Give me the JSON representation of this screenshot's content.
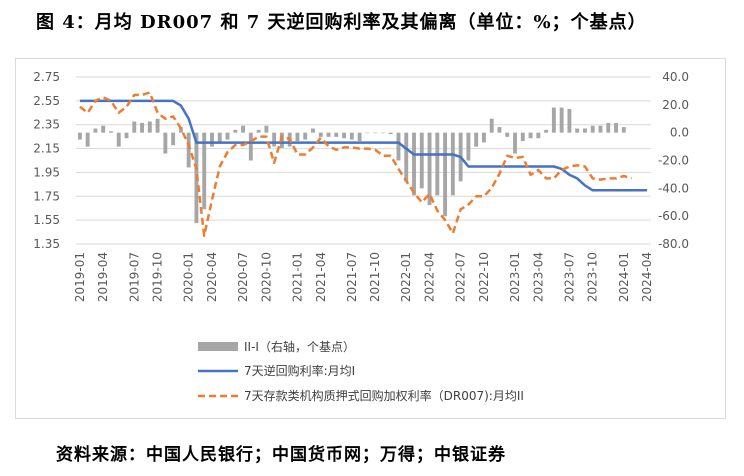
{
  "figure_title": "图 4：月均 DR007 和 7 天逆回购利率及其偏离（单位：%；个基点）",
  "source": "资料来源：中国人民银行；中国货币网；万得；中银证券",
  "colors": {
    "bar": "#a6a6a6",
    "reverse_repo": "#4472c4",
    "dr007": "#ed7d31",
    "grid": "#d9d9d9",
    "axis_text": "#595959"
  },
  "chart_data": {
    "type": "combo",
    "x_labels": [
      "2019-01",
      "2019-04",
      "2019-07",
      "2019-10",
      "2020-01",
      "2020-04",
      "2020-07",
      "2020-10",
      "2021-01",
      "2021-04",
      "2021-07",
      "2021-10",
      "2022-01",
      "2022-04",
      "2022-07",
      "2022-10",
      "2023-01",
      "2023-04",
      "2023-07",
      "2023-10",
      "2024-01",
      "2024-04"
    ],
    "y_left": {
      "ylim": [
        1.35,
        2.75
      ],
      "ticks": [
        "2.75",
        "2.55",
        "2.35",
        "2.15",
        "1.95",
        "1.75",
        "1.55",
        "1.35"
      ]
    },
    "y_right": {
      "ylim": [
        -80,
        40
      ],
      "ticks": [
        "40.0",
        "20.0",
        "0.0",
        "-20.0",
        "-40.0",
        "-60.0",
        "-80.0"
      ]
    },
    "legend_position": "bottom",
    "series": [
      {
        "name": "II-I（右轴，个基点）",
        "type": "bar",
        "axis": "right",
        "values": [
          -5,
          -10,
          3,
          5,
          1,
          -10,
          -4,
          8,
          7,
          8,
          10,
          -15,
          -9,
          4,
          -25,
          -65,
          -55,
          -10,
          -7,
          -5,
          2,
          5,
          -20,
          2,
          5,
          -10,
          -11,
          -10,
          -6,
          -5,
          3,
          -3,
          -3,
          -3,
          -4,
          -5,
          -6,
          0,
          0,
          0,
          -1,
          -20,
          -35,
          -45,
          -40,
          -52,
          -45,
          -60,
          -45,
          -35,
          -20,
          -10,
          -7,
          10,
          4,
          -3,
          -15,
          -6,
          -4,
          -4,
          2,
          18,
          18,
          17,
          3,
          3,
          5,
          5,
          7,
          7,
          4
        ]
      },
      {
        "name": "7天逆回购利率:月均I",
        "type": "line",
        "axis": "left",
        "values": [
          2.55,
          2.55,
          2.55,
          2.55,
          2.55,
          2.55,
          2.55,
          2.55,
          2.55,
          2.55,
          2.55,
          2.55,
          2.55,
          2.51,
          2.4,
          2.2,
          2.2,
          2.2,
          2.2,
          2.2,
          2.2,
          2.2,
          2.2,
          2.2,
          2.2,
          2.2,
          2.2,
          2.2,
          2.2,
          2.2,
          2.2,
          2.2,
          2.2,
          2.2,
          2.2,
          2.2,
          2.2,
          2.2,
          2.2,
          2.2,
          2.2,
          2.2,
          2.15,
          2.1,
          2.1,
          2.1,
          2.1,
          2.1,
          2.1,
          2.08,
          2.0,
          2.0,
          2.0,
          2.0,
          2.0,
          2.0,
          2.0,
          2.0,
          2.0,
          2.0,
          2.0,
          2.0,
          1.98,
          1.93,
          1.9,
          1.84,
          1.8,
          1.8,
          1.8,
          1.8,
          1.8,
          1.8,
          1.8,
          1.8
        ]
      },
      {
        "name": "7天存款类机构质押式回购加权利率（DR007):月均II",
        "type": "line",
        "axis": "left",
        "values": [
          2.5,
          2.45,
          2.55,
          2.58,
          2.55,
          2.45,
          2.5,
          2.6,
          2.6,
          2.62,
          2.45,
          2.4,
          2.42,
          2.32,
          2.18,
          1.98,
          1.42,
          1.72,
          2.0,
          2.12,
          2.18,
          2.18,
          2.21,
          2.25,
          2.25,
          2.03,
          2.25,
          2.23,
          2.1,
          2.1,
          2.16,
          2.24,
          2.17,
          2.14,
          2.16,
          2.16,
          2.15,
          2.15,
          2.14,
          2.09,
          2.09,
          1.98,
          1.88,
          1.78,
          1.7,
          1.77,
          1.63,
          1.55,
          1.44,
          1.64,
          1.68,
          1.75,
          1.75,
          1.82,
          1.94,
          2.09,
          2.07,
          2.08,
          1.93,
          1.97,
          1.9,
          1.9,
          1.97,
          2.0,
          2.01,
          2.0,
          1.9,
          1.89,
          1.9,
          1.9,
          1.92,
          1.9
        ]
      }
    ]
  }
}
